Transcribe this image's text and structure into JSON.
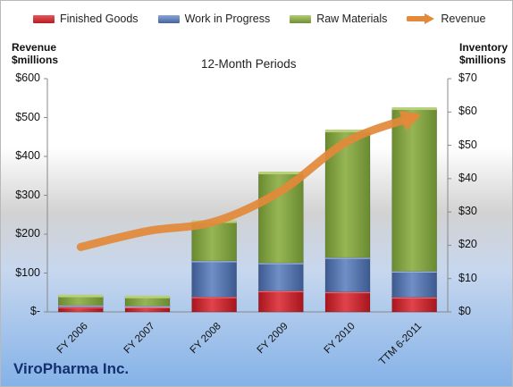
{
  "legend": {
    "finished_goods": "Finished Goods",
    "work_in_progress": "Work in Progress",
    "raw_materials": "Raw Materials",
    "revenue": "Revenue"
  },
  "left_axis_title": [
    "Revenue",
    "$millions"
  ],
  "right_axis_title": [
    "Inventory",
    "$millions"
  ],
  "subtitle": "12-Month Periods",
  "company": "ViroPharma Inc.",
  "colors": {
    "finished_goods": "#c4202a",
    "work_in_progress": "#4f6ea8",
    "raw_materials": "#7a9a3c",
    "revenue": "#e3893a"
  },
  "chart_data": {
    "type": "bar",
    "stacked": true,
    "categories": [
      "FY 2006",
      "FY 2007",
      "FY 2008",
      "FY 2009",
      "FY 2010",
      "TTM 6-2011"
    ],
    "y_left": {
      "label": "Revenue $millions",
      "ylim": [
        0,
        600
      ],
      "ticks": [
        "$-",
        "$100",
        "$200",
        "$300",
        "$400",
        "$500",
        "$600"
      ]
    },
    "y_right": {
      "label": "Inventory $millions",
      "ylim": [
        0,
        70
      ],
      "ticks": [
        "$0",
        "$10",
        "$20",
        "$30",
        "$40",
        "$50",
        "$60",
        "$70"
      ]
    },
    "series": [
      {
        "name": "Finished Goods",
        "axis": "right",
        "kind": "bar",
        "values": [
          1.5,
          1.5,
          4.5,
          6.3,
          6.0,
          4.4
        ]
      },
      {
        "name": "Work in Progress",
        "axis": "right",
        "kind": "bar",
        "values": [
          0.5,
          0.3,
          10.8,
          8.4,
          10.3,
          7.8
        ]
      },
      {
        "name": "Raw Materials",
        "axis": "right",
        "kind": "bar",
        "values": [
          2.8,
          2.7,
          11.8,
          27.0,
          38.0,
          48.8
        ]
      },
      {
        "name": "Revenue",
        "axis": "left",
        "kind": "line",
        "values": [
          167,
          208,
          232,
          311,
          439,
          502
        ]
      }
    ]
  }
}
